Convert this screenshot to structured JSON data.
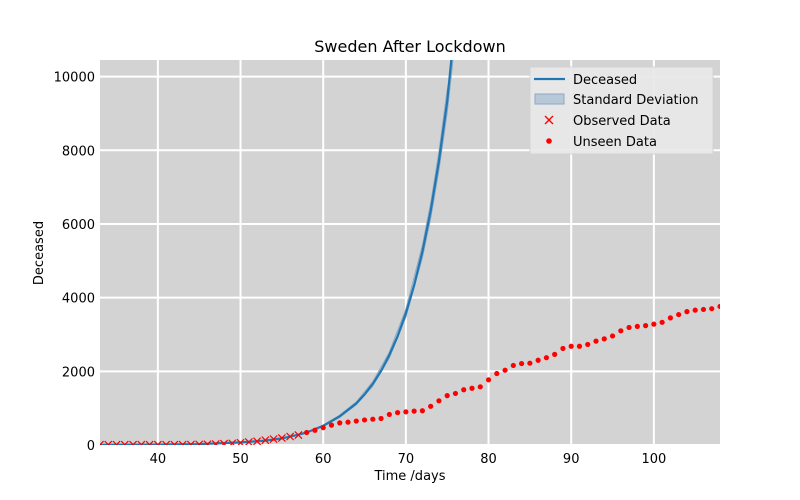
{
  "chart_data": {
    "type": "line",
    "title": "Sweden After Lockdown",
    "xlabel": "Time /days",
    "ylabel": "Deceased",
    "xlim": [
      33,
      108
    ],
    "ylim": [
      0,
      10450
    ],
    "xticks": [
      40,
      50,
      60,
      70,
      80,
      90,
      100
    ],
    "yticks": [
      0,
      2000,
      4000,
      6000,
      8000,
      10000
    ],
    "grid": true,
    "legend_position": "top-right",
    "colors": {
      "plot_background": "#d3d3d3",
      "grid": "#ffffff",
      "deceased_line": "#1f77b4",
      "std_band": "#8fa8bf",
      "observed": "#ff0000",
      "unseen": "#ff0000"
    },
    "legend": [
      {
        "label": "Deceased",
        "kind": "line"
      },
      {
        "label": "Standard Deviation",
        "kind": "band"
      },
      {
        "label": "Observed Data",
        "kind": "x-marker"
      },
      {
        "label": "Unseen Data",
        "kind": "dot"
      }
    ],
    "series": [
      {
        "name": "Deceased",
        "kind": "line",
        "x": [
          33,
          40,
          45,
          50,
          53,
          55,
          57,
          58,
          60,
          62,
          64,
          65,
          66,
          67,
          68,
          69,
          70,
          71,
          72,
          73,
          74,
          75,
          75.5
        ],
        "y": [
          5,
          12,
          25,
          70,
          120,
          180,
          280,
          340,
          520,
          780,
          1130,
          1370,
          1660,
          2010,
          2440,
          2950,
          3580,
          4330,
          5250,
          6360,
          7700,
          9330,
          10450
        ]
      },
      {
        "name": "Standard Deviation",
        "kind": "band",
        "x": [
          60,
          62,
          64,
          66,
          68,
          70,
          72,
          73,
          74,
          75,
          75.7
        ],
        "lower": [
          500,
          750,
          1090,
          1600,
          2360,
          3470,
          5080,
          6150,
          7450,
          9020,
          10450
        ],
        "upper": [
          540,
          810,
          1170,
          1720,
          2520,
          3690,
          5420,
          6570,
          7950,
          9640,
          10450
        ]
      },
      {
        "name": "Observed Data",
        "kind": "x-marker",
        "x": [
          33,
          34,
          35,
          36,
          37,
          38,
          39,
          40,
          41,
          42,
          43,
          44,
          45,
          46,
          47,
          48,
          49,
          50,
          51,
          52,
          53,
          54,
          55,
          56,
          57
        ],
        "y": [
          10,
          10,
          10,
          10,
          10,
          10,
          10,
          10,
          10,
          10,
          10,
          12,
          15,
          20,
          25,
          35,
          45,
          60,
          80,
          100,
          130,
          160,
          190,
          230,
          270
        ]
      },
      {
        "name": "Unseen Data",
        "kind": "dot",
        "x": [
          58,
          59,
          60,
          61,
          62,
          63,
          64,
          65,
          66,
          67,
          68,
          69,
          70,
          71,
          72,
          73,
          74,
          75,
          76,
          77,
          78,
          79,
          80,
          81,
          82,
          83,
          84,
          85,
          86,
          87,
          88,
          89,
          90,
          91,
          92,
          93,
          94,
          95,
          96,
          97,
          98,
          99,
          100,
          101,
          102,
          103,
          104,
          105,
          106,
          107,
          108
        ],
        "y": [
          340,
          400,
          470,
          540,
          600,
          620,
          650,
          680,
          700,
          720,
          830,
          880,
          900,
          920,
          930,
          1050,
          1200,
          1340,
          1400,
          1500,
          1540,
          1580,
          1770,
          1940,
          2030,
          2160,
          2210,
          2220,
          2300,
          2370,
          2460,
          2620,
          2680,
          2680,
          2730,
          2820,
          2880,
          2960,
          3100,
          3190,
          3220,
          3240,
          3280,
          3330,
          3450,
          3540,
          3620,
          3660,
          3680,
          3700,
          3760
        ]
      }
    ]
  }
}
